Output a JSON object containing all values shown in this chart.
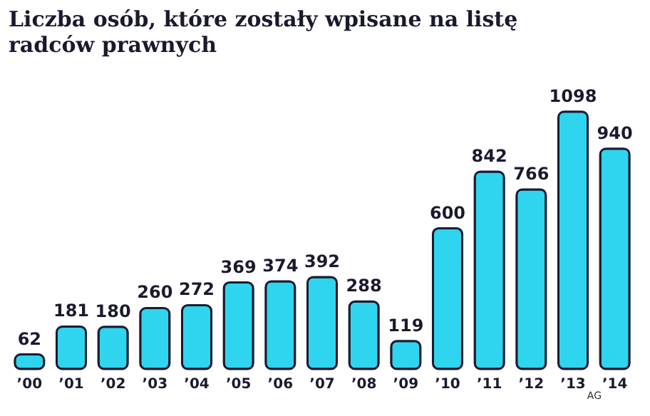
{
  "chart_data": {
    "type": "bar",
    "title": "Liczba osób, które zostały wpisane na listę radców prawnych",
    "categories": [
      "’00",
      "’01",
      "’02",
      "’03",
      "’04",
      "’05",
      "’06",
      "’07",
      "’08",
      "’09",
      "’10",
      "’11",
      "’12",
      "’13",
      "’14"
    ],
    "values": [
      62,
      181,
      180,
      260,
      272,
      369,
      374,
      392,
      288,
      119,
      600,
      842,
      766,
      1098,
      940
    ],
    "color": "#2fd5ee",
    "data_labels": true,
    "annotations": [
      "AG"
    ]
  }
}
